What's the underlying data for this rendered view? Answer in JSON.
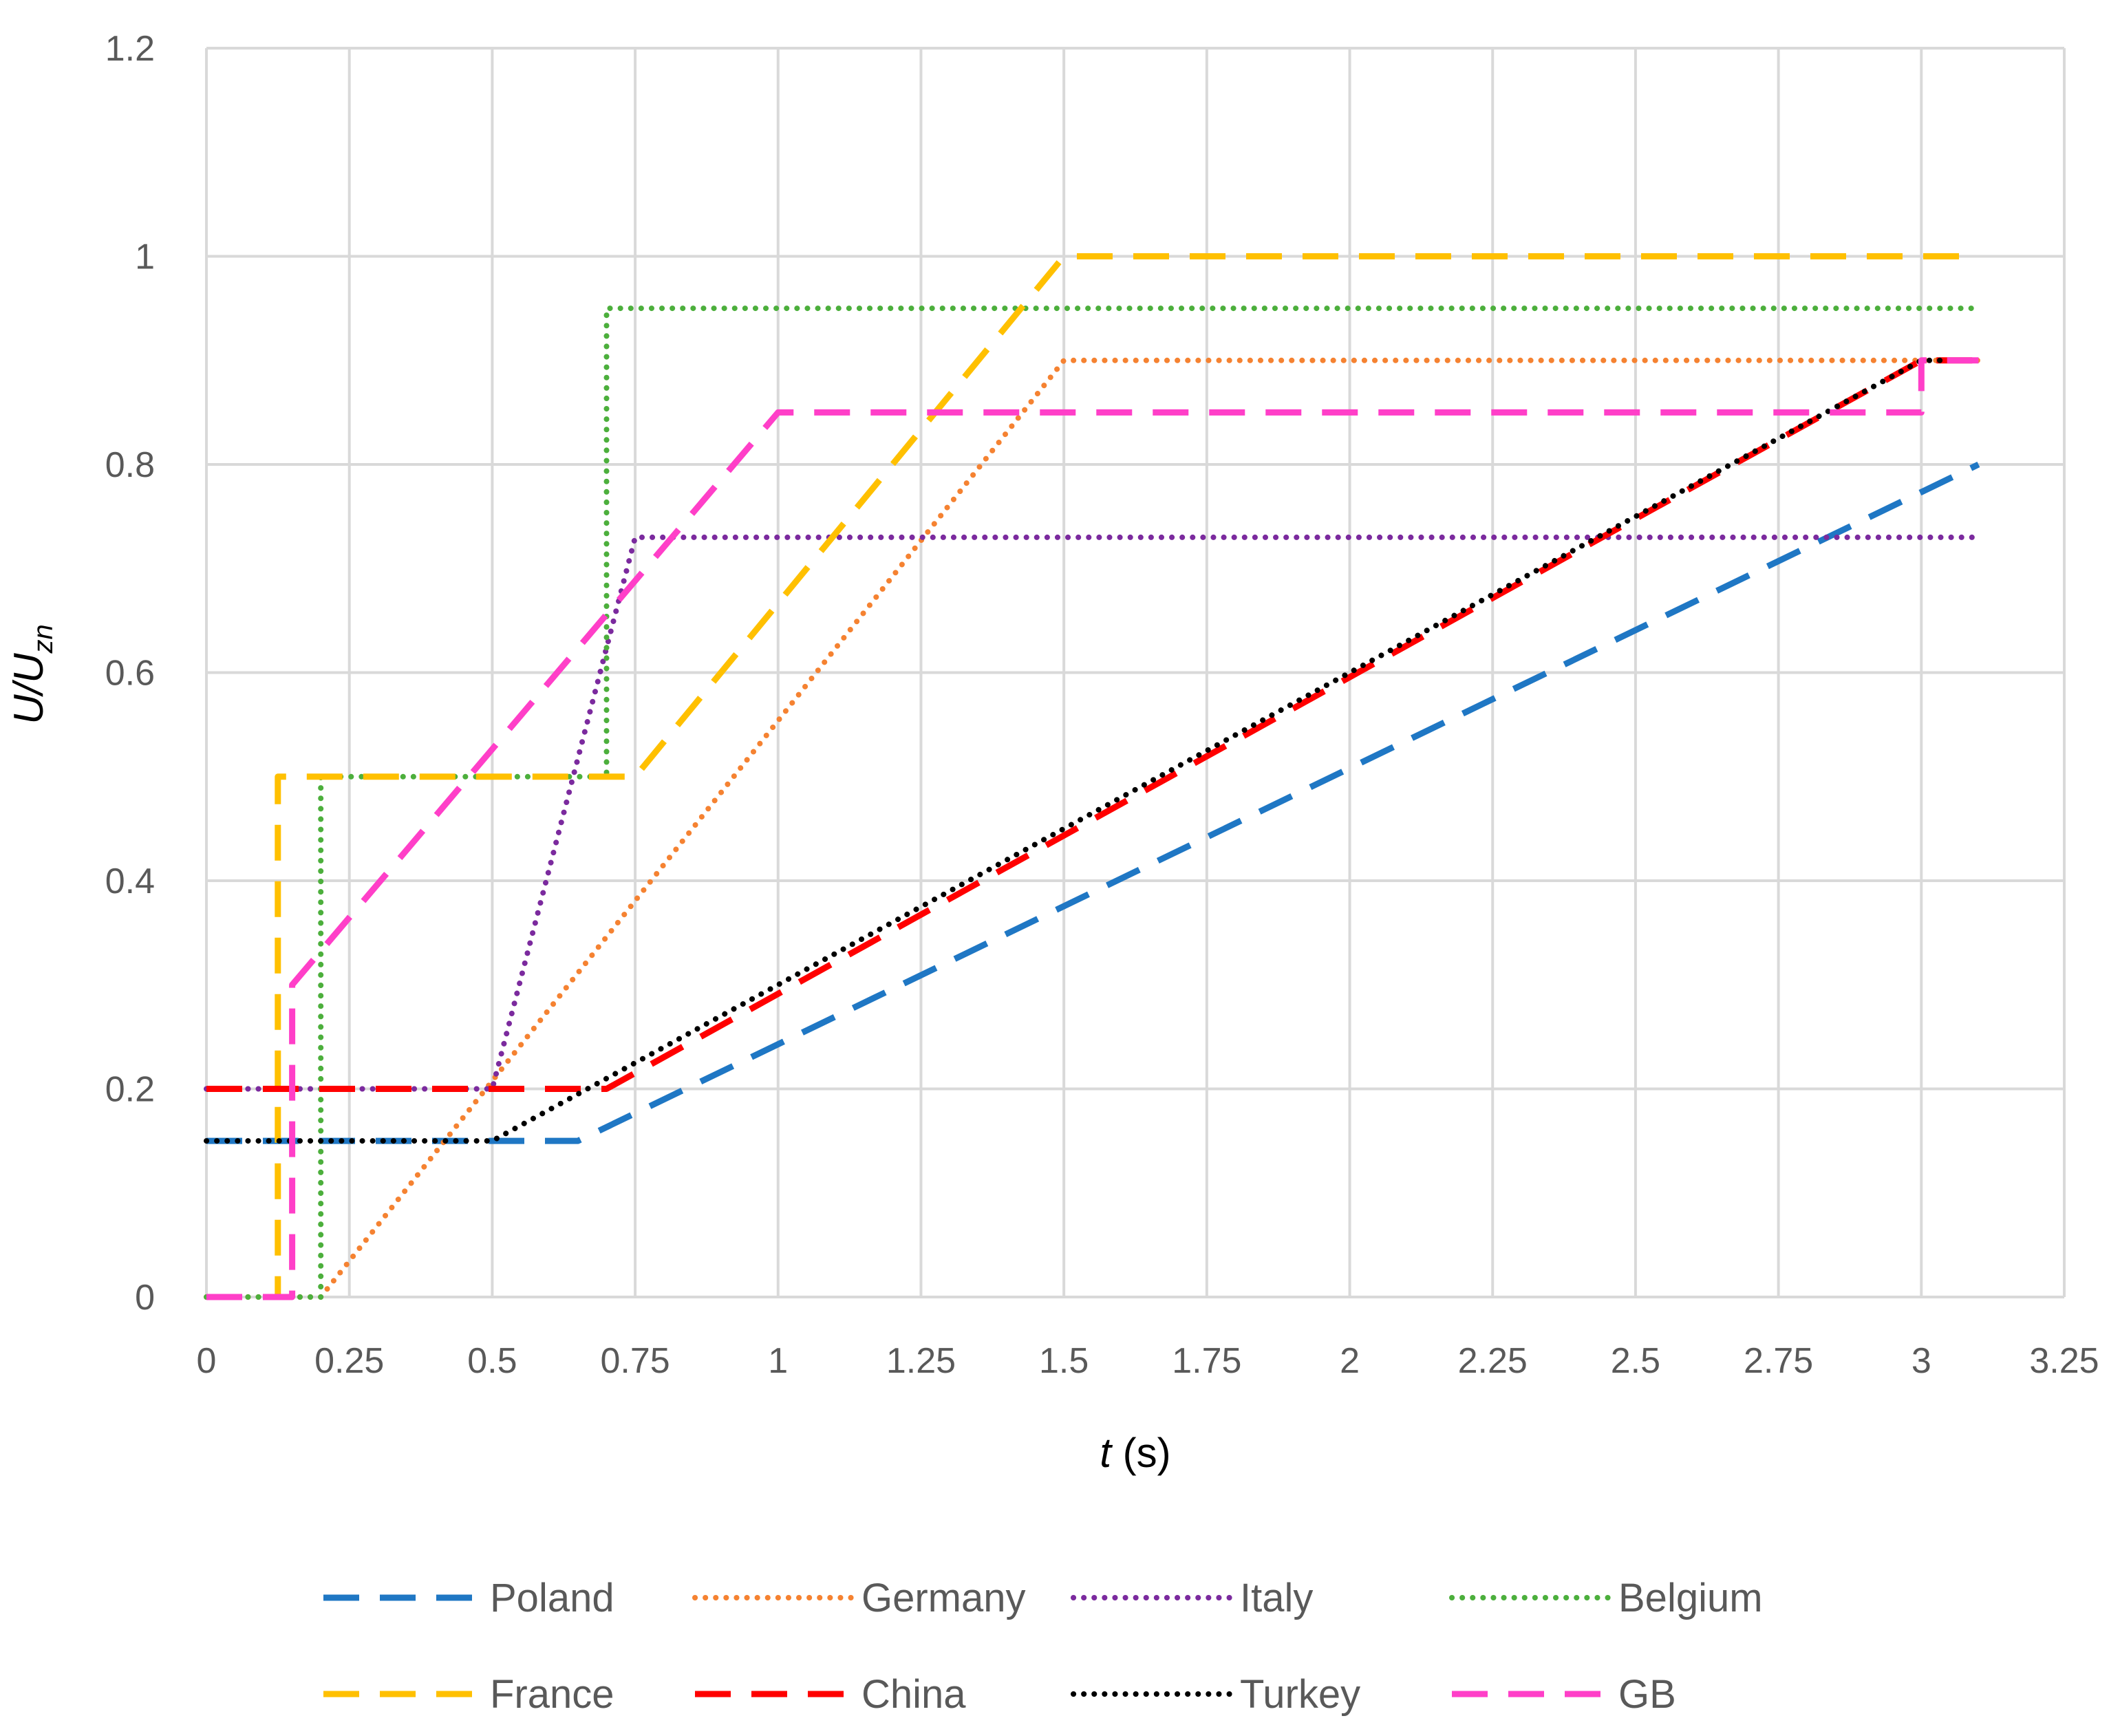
{
  "chart_data": {
    "type": "line",
    "xlabel": {
      "var": "t",
      "unit": " (s)"
    },
    "ylabel": {
      "base": "U/U",
      "sub": "zn"
    },
    "xlim": [
      0,
      3.25
    ],
    "ylim": [
      0,
      1.2
    ],
    "x_ticks": [
      "0",
      "0.25",
      "0.5",
      "0.75",
      "1",
      "1.25",
      "1.5",
      "1.75",
      "2",
      "2.25",
      "2.5",
      "2.75",
      "3",
      "3.25"
    ],
    "y_ticks": [
      "0",
      "0.2",
      "0.4",
      "0.6",
      "0.8",
      "1",
      "1.2"
    ],
    "grid": true,
    "legend_position": "bottom",
    "series": [
      {
        "name": "Poland",
        "color": "#1F77C4",
        "style": "dashed",
        "x": [
          0,
          0.65,
          3.1
        ],
        "y": [
          0.15,
          0.15,
          0.8
        ]
      },
      {
        "name": "Germany",
        "color": "#F58231",
        "style": "dotted",
        "x": [
          0,
          0.2,
          1.5,
          3.1
        ],
        "y": [
          0,
          0,
          0.9,
          0.9
        ]
      },
      {
        "name": "Italy",
        "color": "#7B2A9E",
        "style": "dotted",
        "x": [
          0,
          0.5,
          0.75,
          3.1
        ],
        "y": [
          0.2,
          0.2,
          0.73,
          0.73
        ]
      },
      {
        "name": "Belgium",
        "color": "#4CAF3C",
        "style": "dotted",
        "x": [
          0,
          0.2,
          0.2,
          0.7,
          0.7,
          3.1
        ],
        "y": [
          0,
          0,
          0.5,
          0.5,
          0.95,
          0.95
        ]
      },
      {
        "name": "France",
        "color": "#FFC000",
        "style": "dashed",
        "x": [
          0,
          0.125,
          0.125,
          0.75,
          1.5,
          3.1
        ],
        "y": [
          0,
          0,
          0.5,
          0.5,
          1.0,
          1.0
        ]
      },
      {
        "name": "China",
        "color": "#FF0000",
        "style": "dashed",
        "x": [
          0,
          0.7,
          3.0,
          3.1
        ],
        "y": [
          0.2,
          0.2,
          0.9,
          0.9
        ]
      },
      {
        "name": "Turkey",
        "color": "#000000",
        "style": "dotted",
        "x": [
          0,
          0.5,
          3.0,
          3.1
        ],
        "y": [
          0.15,
          0.15,
          0.9,
          0.9
        ]
      },
      {
        "name": "GB",
        "color": "#FF3FC8",
        "style": "dashed",
        "x": [
          0,
          0.15,
          0.15,
          1.0,
          3.0,
          3.0,
          3.1
        ],
        "y": [
          0,
          0,
          0.3,
          0.85,
          0.85,
          0.9,
          0.9
        ]
      }
    ]
  }
}
